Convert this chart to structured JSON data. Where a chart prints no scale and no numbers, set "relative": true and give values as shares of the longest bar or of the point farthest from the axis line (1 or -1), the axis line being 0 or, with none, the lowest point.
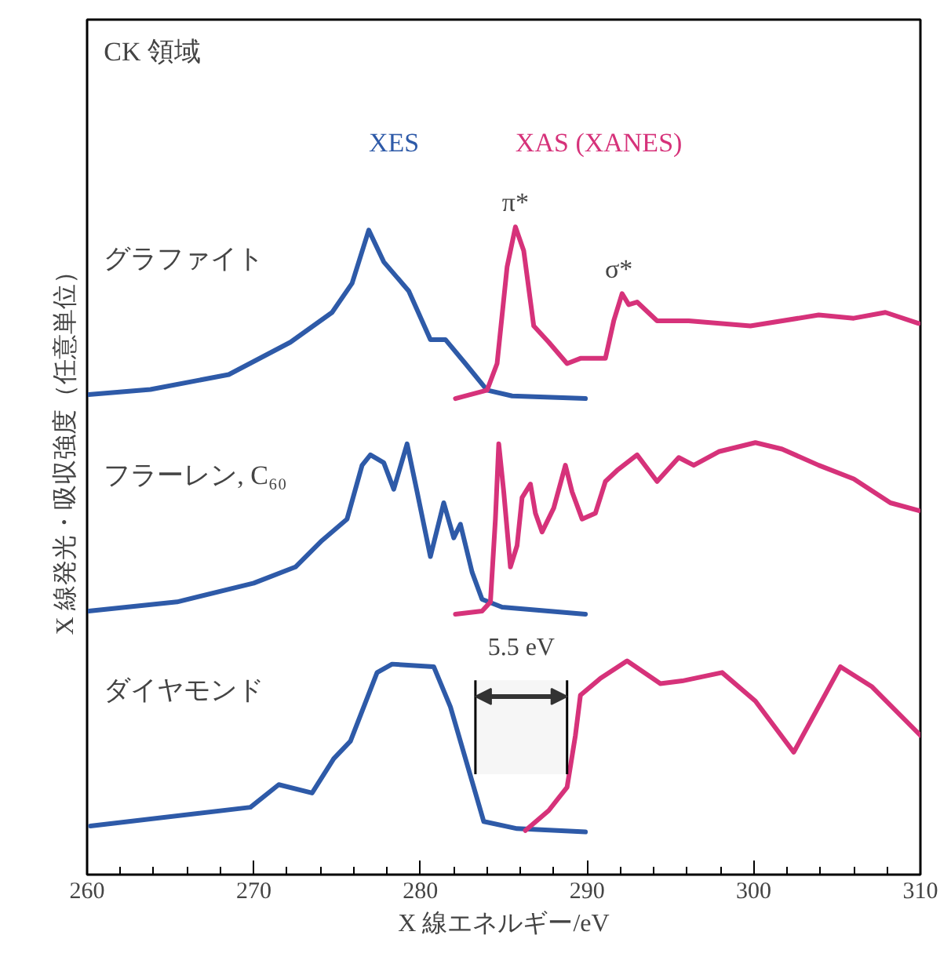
{
  "chart_data": {
    "type": "line",
    "relative": true,
    "xlabel": "X 線エネルギー/eV",
    "ylabel": "X 線発光・吸収強度（任意単位）",
    "xlim": [
      260,
      310
    ],
    "xticks": [
      260,
      {
        "value": 262,
        "label": null
      },
      {
        "value": 264,
        "label": null
      },
      {
        "value": 266,
        "label": null
      },
      {
        "value": 268,
        "label": null
      },
      270,
      {
        "value": 272,
        "label": null
      },
      {
        "value": 274,
        "label": null
      },
      {
        "value": 276,
        "label": null
      },
      {
        "value": 278,
        "label": null
      },
      280,
      {
        "value": 282,
        "label": null
      },
      {
        "value": 284,
        "label": null
      },
      {
        "value": 286,
        "label": null
      },
      {
        "value": 288,
        "label": null
      },
      290,
      {
        "value": 292,
        "label": null
      },
      {
        "value": 294,
        "label": null
      },
      {
        "value": 296,
        "label": null
      },
      {
        "value": 298,
        "label": null
      },
      300,
      {
        "value": 302,
        "label": null
      },
      {
        "value": 304,
        "label": null
      },
      {
        "value": 306,
        "label": null
      },
      {
        "value": 308,
        "label": null
      },
      310
    ],
    "grid": false,
    "line_style": "solid",
    "marker": "none",
    "series": [
      {
        "name": "XES",
        "color": "#2e5aa8",
        "x": [
          260.1,
          263.8,
          268.5,
          272.2,
          274.7,
          275.9,
          276.9,
          277.8,
          279.3,
          280.6,
          281.5,
          282.7,
          284.0,
          285.5,
          289.9
        ],
        "values": [
          0.741,
          0.749,
          0.772,
          0.822,
          0.868,
          0.913,
          0.995,
          0.946,
          0.901,
          0.826,
          0.826,
          0.789,
          0.748,
          0.739,
          0.735
        ]
      },
      {
        "name": "XAS (XANES)",
        "color": "#d6327a",
        "x": [
          282.1,
          284.0,
          284.6,
          285.2,
          285.7,
          286.2,
          286.8,
          287.7,
          288.8,
          289.6,
          291.1,
          291.6,
          292.1,
          292.5,
          293.0,
          294.2,
          296.1,
          299.8,
          303.9,
          306.0,
          307.9,
          309.9
        ],
        "values": [
          0.735,
          0.748,
          0.789,
          0.938,
          1.0,
          0.963,
          0.847,
          0.822,
          0.789,
          0.797,
          0.797,
          0.855,
          0.897,
          0.88,
          0.884,
          0.855,
          0.855,
          0.847,
          0.864,
          0.859,
          0.868,
          0.851
        ]
      },
      {
        "color": "#2e5aa8",
        "x": [
          260.1,
          265.4,
          270.0,
          272.5,
          274.1,
          275.6,
          276.5,
          277.0,
          277.8,
          278.4,
          279.2,
          279.8,
          280.6,
          281.4,
          282.0,
          282.4,
          283.1,
          283.7,
          284.9,
          289.9
        ],
        "values": [
          0.407,
          0.421,
          0.45,
          0.475,
          0.516,
          0.549,
          0.632,
          0.648,
          0.636,
          0.595,
          0.665,
          0.591,
          0.491,
          0.574,
          0.52,
          0.541,
          0.467,
          0.425,
          0.413,
          0.402
        ]
      },
      {
        "color": "#d6327a",
        "x": [
          282.1,
          283.7,
          284.2,
          284.5,
          284.7,
          285.0,
          285.4,
          285.8,
          286.1,
          286.6,
          286.9,
          287.3,
          288.0,
          288.7,
          289.1,
          289.7,
          290.5,
          291.1,
          291.8,
          293.0,
          294.2,
          295.5,
          296.4,
          297.9,
          300.1,
          301.7,
          303.9,
          306.0,
          308.2,
          309.9
        ],
        "values": [
          0.402,
          0.407,
          0.421,
          0.549,
          0.665,
          0.591,
          0.475,
          0.508,
          0.582,
          0.603,
          0.558,
          0.529,
          0.566,
          0.632,
          0.591,
          0.549,
          0.558,
          0.607,
          0.624,
          0.648,
          0.607,
          0.644,
          0.632,
          0.653,
          0.667,
          0.657,
          0.632,
          0.611,
          0.574,
          0.562
        ]
      },
      {
        "color": "#2e5aa8",
        "x": [
          260.2,
          269.8,
          271.5,
          273.5,
          274.8,
          275.8,
          277.4,
          278.3,
          280.8,
          281.8,
          283.8,
          285.8,
          289.9
        ],
        "values": [
          0.075,
          0.104,
          0.139,
          0.126,
          0.179,
          0.206,
          0.312,
          0.325,
          0.321,
          0.259,
          0.082,
          0.071,
          0.066
        ]
      },
      {
        "color": "#d6327a",
        "x": [
          286.3,
          287.7,
          288.8,
          289.3,
          289.6,
          290.8,
          292.4,
          294.4,
          295.7,
          298.1,
          300.1,
          302.4,
          305.2,
          307.1,
          310.0
        ],
        "values": [
          0.068,
          0.099,
          0.135,
          0.215,
          0.277,
          0.303,
          0.33,
          0.295,
          0.299,
          0.312,
          0.268,
          0.189,
          0.321,
          0.29,
          0.215
        ]
      }
    ],
    "bands": [
      {
        "axis": "x",
        "from": 283.3,
        "to": 288.8,
        "label": "5.5 eV"
      }
    ],
    "annotations": [
      "CK 領域",
      "グラファイト",
      "フラーレン, C₆₀",
      "ダイヤモンド",
      {
        "text": "π*",
        "x": 285.7,
        "y": 1.0
      },
      {
        "text": "σ*",
        "x": 291.9,
        "y": 0.897
      }
    ]
  }
}
